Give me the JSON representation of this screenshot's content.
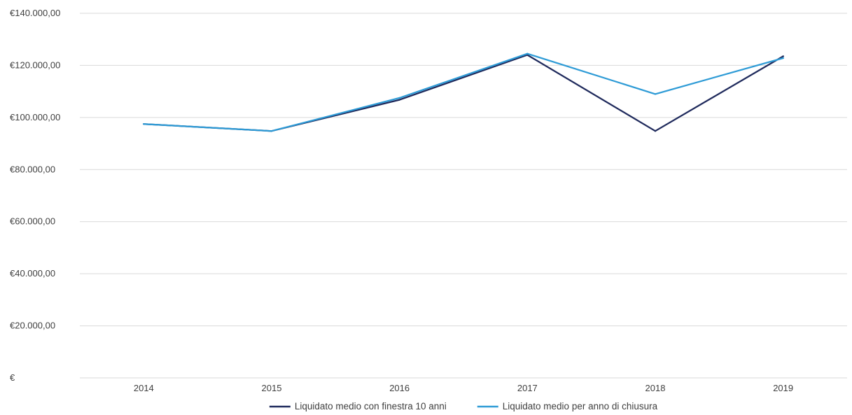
{
  "chart_data": {
    "type": "line",
    "title": "",
    "xlabel": "",
    "ylabel": "",
    "categories": [
      "2014",
      "2015",
      "2016",
      "2017",
      "2018",
      "2019"
    ],
    "ylim": [
      0,
      140000
    ],
    "y_ticks": [
      0,
      20000,
      40000,
      60000,
      80000,
      100000,
      120000,
      140000
    ],
    "y_tick_labels": [
      "€",
      "€20.000,00",
      "€40.000,00",
      "€60.000,00",
      "€80.000,00",
      "€100.000,00",
      "€120.000,00",
      "€140.000,00"
    ],
    "grid": "horizontal",
    "legend_position": "bottom",
    "series": [
      {
        "name": "Liquidato medio con finestra 10 anni",
        "color": "#1f2a5c",
        "values": [
          97500,
          94800,
          106800,
          124000,
          94800,
          123500
        ]
      },
      {
        "name": "Liquidato medio per anno di chiusura",
        "color": "#2e9bd6",
        "values": [
          97500,
          94800,
          107500,
          124500,
          109000,
          122800
        ]
      }
    ]
  }
}
